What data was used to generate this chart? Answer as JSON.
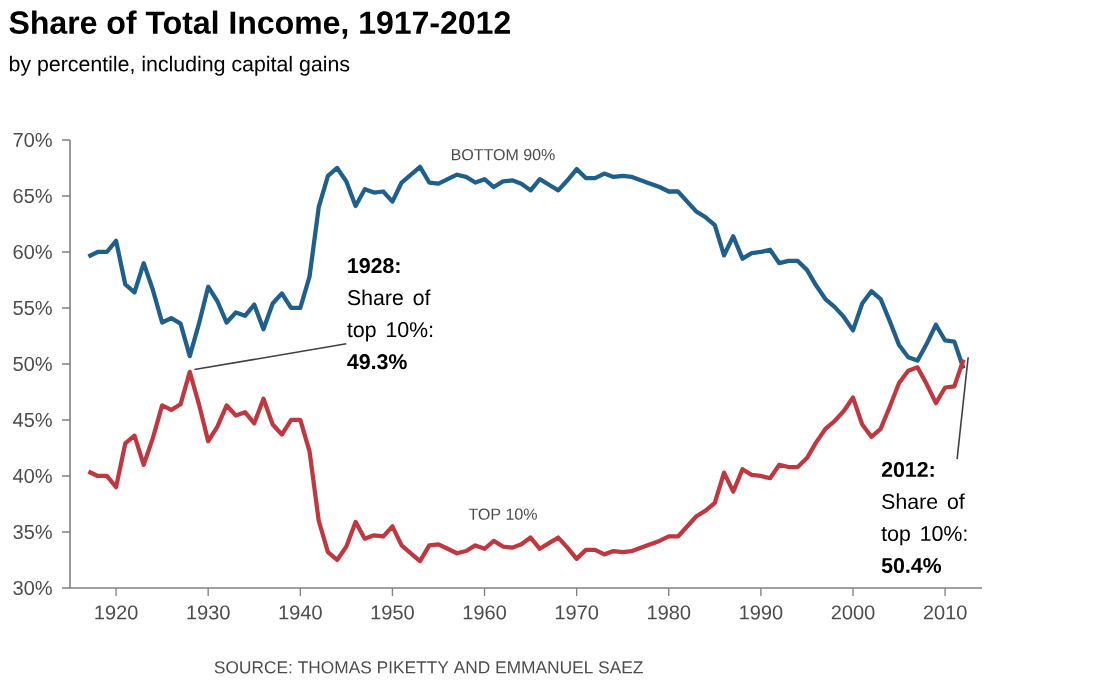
{
  "chart_data": {
    "type": "line",
    "title": "Share of Total Income, 1917-2012",
    "subtitle": "by percentile, including capital gains",
    "x": [
      1917,
      1918,
      1919,
      1920,
      1921,
      1922,
      1923,
      1924,
      1925,
      1926,
      1927,
      1928,
      1929,
      1930,
      1931,
      1932,
      1933,
      1934,
      1935,
      1936,
      1937,
      1938,
      1939,
      1940,
      1941,
      1942,
      1943,
      1944,
      1945,
      1946,
      1947,
      1948,
      1949,
      1950,
      1951,
      1952,
      1953,
      1954,
      1955,
      1956,
      1957,
      1958,
      1959,
      1960,
      1961,
      1962,
      1963,
      1964,
      1965,
      1966,
      1967,
      1968,
      1969,
      1970,
      1971,
      1972,
      1973,
      1974,
      1975,
      1976,
      1977,
      1978,
      1979,
      1980,
      1981,
      1982,
      1983,
      1984,
      1985,
      1986,
      1987,
      1988,
      1989,
      1990,
      1991,
      1992,
      1993,
      1994,
      1995,
      1996,
      1997,
      1998,
      1999,
      2000,
      2001,
      2002,
      2003,
      2004,
      2005,
      2006,
      2007,
      2008,
      2009,
      2010,
      2011,
      2012
    ],
    "series": [
      {
        "name": "BOTTOM 90%",
        "color": "#1f5f8b",
        "values": [
          59.6,
          60.0,
          60.0,
          61.0,
          57.1,
          56.4,
          59.0,
          56.6,
          53.7,
          54.1,
          53.6,
          50.7,
          53.6,
          56.9,
          55.6,
          53.7,
          54.6,
          54.3,
          55.3,
          53.1,
          55.4,
          56.3,
          55.0,
          55.0,
          57.8,
          64.0,
          66.8,
          67.5,
          66.3,
          64.1,
          65.6,
          65.3,
          65.4,
          64.5,
          66.2,
          66.9,
          67.6,
          66.2,
          66.1,
          66.5,
          66.9,
          66.7,
          66.2,
          66.5,
          65.8,
          66.3,
          66.4,
          66.1,
          65.5,
          66.5,
          66.0,
          65.5,
          66.4,
          67.4,
          66.6,
          66.6,
          67.0,
          66.7,
          66.8,
          66.7,
          66.4,
          66.1,
          65.8,
          65.4,
          65.4,
          64.5,
          63.6,
          63.1,
          62.4,
          59.7,
          61.4,
          59.4,
          59.9,
          60.0,
          60.2,
          59.0,
          59.2,
          59.2,
          58.4,
          57.0,
          55.8,
          55.1,
          54.2,
          53.0,
          55.4,
          56.5,
          55.8,
          53.8,
          51.7,
          50.6,
          50.3,
          51.8,
          53.5,
          52.1,
          52.0,
          49.6
        ]
      },
      {
        "name": "TOP 10%",
        "color": "#c0373f",
        "values": [
          40.4,
          40.0,
          40.0,
          39.0,
          42.9,
          43.6,
          41.0,
          43.4,
          46.3,
          45.9,
          46.4,
          49.3,
          46.4,
          43.1,
          44.4,
          46.3,
          45.4,
          45.7,
          44.7,
          46.9,
          44.6,
          43.7,
          45.0,
          45.0,
          42.2,
          36.0,
          33.2,
          32.5,
          33.7,
          35.9,
          34.4,
          34.7,
          34.6,
          35.5,
          33.8,
          33.1,
          32.4,
          33.8,
          33.9,
          33.5,
          33.1,
          33.3,
          33.8,
          33.5,
          34.2,
          33.7,
          33.6,
          33.9,
          34.5,
          33.5,
          34.0,
          34.5,
          33.6,
          32.6,
          33.4,
          33.4,
          33.0,
          33.3,
          33.2,
          33.3,
          33.6,
          33.9,
          34.2,
          34.6,
          34.6,
          35.5,
          36.4,
          36.9,
          37.6,
          40.3,
          38.6,
          40.6,
          40.1,
          40.0,
          39.8,
          41.0,
          40.8,
          40.8,
          41.6,
          43.0,
          44.2,
          44.9,
          45.8,
          47.0,
          44.6,
          43.5,
          44.2,
          46.2,
          48.3,
          49.4,
          49.7,
          48.2,
          46.5,
          47.9,
          48.0,
          50.4
        ]
      }
    ],
    "xlim": [
      1915,
      2014
    ],
    "xticks": [
      1920,
      1930,
      1940,
      1950,
      1960,
      1970,
      1980,
      1990,
      2000,
      2010
    ],
    "ylim": [
      30,
      70
    ],
    "yticks": [
      {
        "value": 30,
        "label": "30%"
      },
      {
        "value": 35,
        "label": "35%"
      },
      {
        "value": 40,
        "label": "40%"
      },
      {
        "value": 45,
        "label": "45%"
      },
      {
        "value": 50,
        "label": "50%"
      },
      {
        "value": 55,
        "label": "55%"
      },
      {
        "value": 60,
        "label": "60%"
      },
      {
        "value": 65,
        "label": "65%"
      },
      {
        "value": 70,
        "label": "70%"
      }
    ],
    "annotations": [
      {
        "text": "**1928:** Share of top 10%: **49.3%**",
        "x": 1928,
        "y": 49.3
      },
      {
        "text": "**2012:** Share of top 10%: **50.4%**",
        "x": 2012,
        "y": 50.4
      },
      "SOURCE: THOMAS PIKETTY AND EMMANUEL SAEZ"
    ],
    "grid": false,
    "legend": false,
    "marker": "none",
    "line_style": "solid"
  }
}
